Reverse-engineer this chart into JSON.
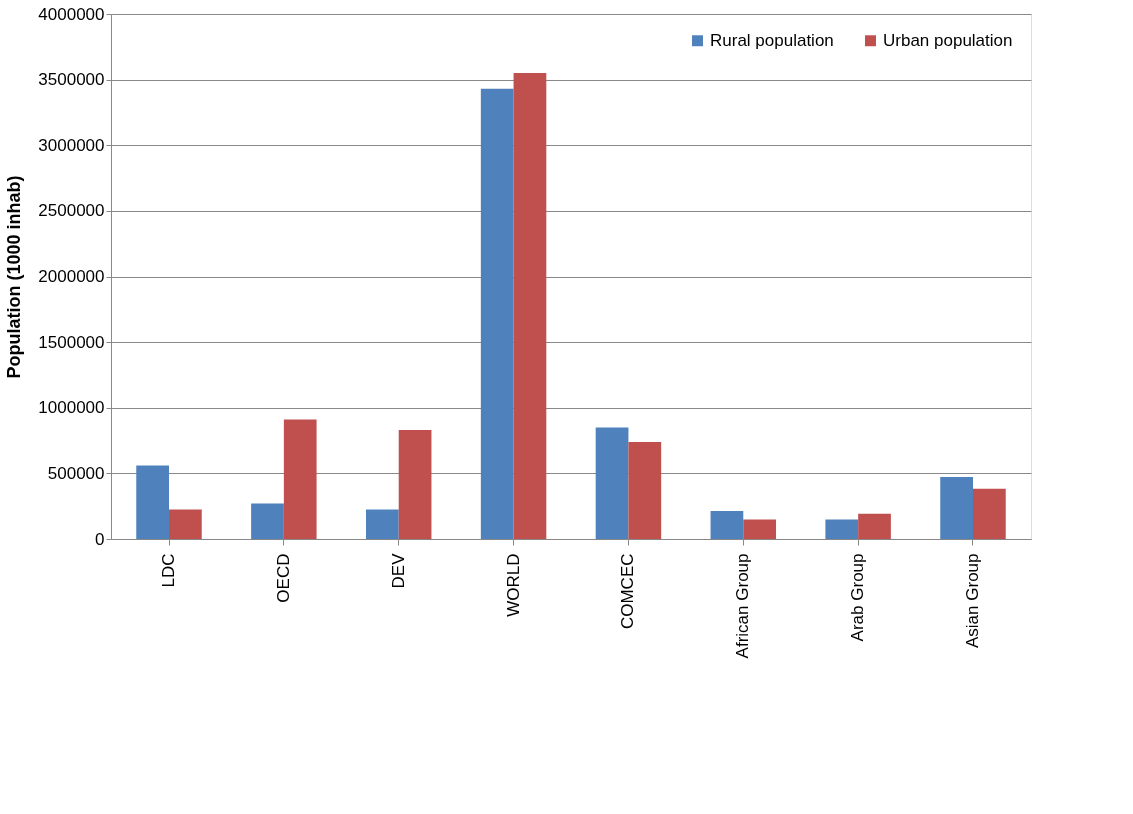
{
  "chart_data": {
    "type": "bar",
    "ylabel": "Population (1000  inhab)",
    "categories": [
      "LDC",
      "OECD",
      "DEV",
      "WORLD",
      "COMCEC",
      "African Group",
      "Arab Group",
      "Asian Group"
    ],
    "series": [
      {
        "name": "Rural population",
        "color": "#4f81bd",
        "values": [
          560000,
          270000,
          225000,
          3430000,
          850000,
          213000,
          149000,
          472000
        ]
      },
      {
        "name": "Urban population",
        "color": "#c0504d",
        "values": [
          225000,
          910000,
          830000,
          3550000,
          740000,
          149000,
          192000,
          382000
        ]
      }
    ],
    "ylim": [
      0,
      4000000
    ],
    "yticks": [
      0,
      500000,
      1000000,
      1500000,
      2000000,
      2500000,
      3000000,
      3500000,
      4000000
    ],
    "grid": "y",
    "legend": "top right"
  }
}
